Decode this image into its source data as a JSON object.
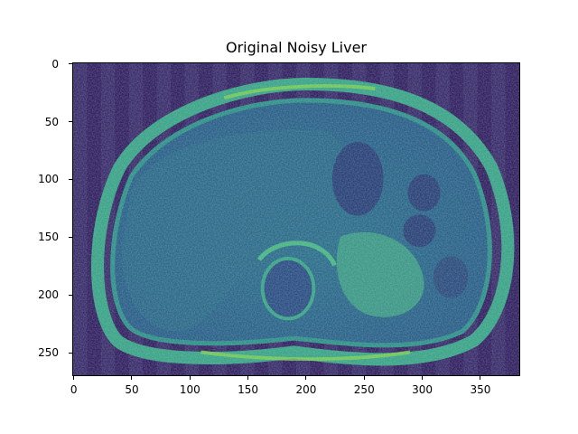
{
  "figure": {
    "title": "Original Noisy Liver",
    "colormap": "viridis",
    "image_size": {
      "width": 384,
      "height": 270
    },
    "x_axis": {
      "ticks": [
        {
          "value": 0,
          "label": "0"
        },
        {
          "value": 50,
          "label": "50"
        },
        {
          "value": 100,
          "label": "100"
        },
        {
          "value": 150,
          "label": "150"
        },
        {
          "value": 200,
          "label": "200"
        },
        {
          "value": 250,
          "label": "250"
        },
        {
          "value": 300,
          "label": "300"
        },
        {
          "value": 350,
          "label": "350"
        }
      ]
    },
    "y_axis": {
      "inverted": true,
      "ticks": [
        {
          "value": 0,
          "label": "0"
        },
        {
          "value": 50,
          "label": "50"
        },
        {
          "value": 100,
          "label": "100"
        },
        {
          "value": 150,
          "label": "150"
        },
        {
          "value": 200,
          "label": "200"
        },
        {
          "value": 250,
          "label": "250"
        }
      ]
    },
    "colors": {
      "background": "#3b2a6e",
      "stripe_dark": "#321d63",
      "tissue": "#2f7c8e",
      "bright": "#4fbf7a",
      "peak": "#8ad24f",
      "dark_organ": "#2b3f7a"
    }
  }
}
